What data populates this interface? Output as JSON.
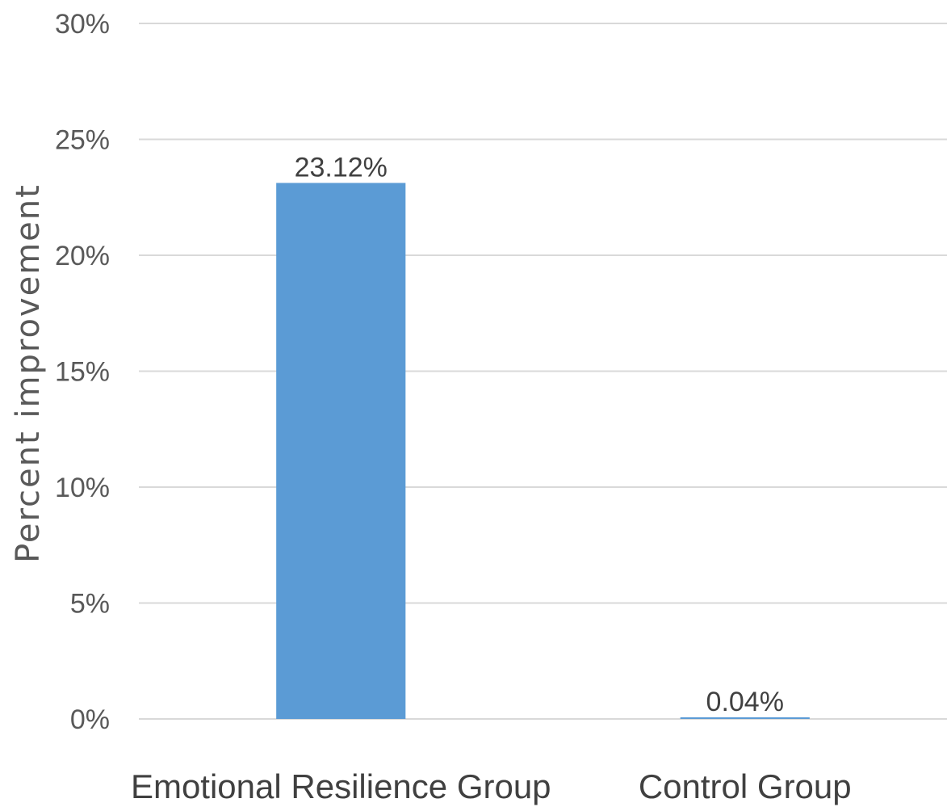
{
  "chart_data": {
    "type": "bar",
    "title": "",
    "xlabel": "",
    "ylabel": "Percent improvement",
    "categories": [
      "Emotional Resilience Group",
      "Control Group"
    ],
    "values": [
      0.2312,
      0.0004
    ],
    "data_labels": [
      "23.12%",
      "0.04%"
    ],
    "ylim": [
      0,
      0.3
    ],
    "yticks": [
      0,
      0.05,
      0.1,
      0.15,
      0.2,
      0.25,
      0.3
    ],
    "ytick_labels": [
      "0%",
      "5%",
      "10%",
      "15%",
      "20%",
      "25%",
      "30%"
    ],
    "grid": true,
    "legend": "none",
    "colors": {
      "bar": "#5b9bd5",
      "grid": "#d9d9d9",
      "axis_text": "#595959",
      "category_text": "#404040"
    }
  }
}
